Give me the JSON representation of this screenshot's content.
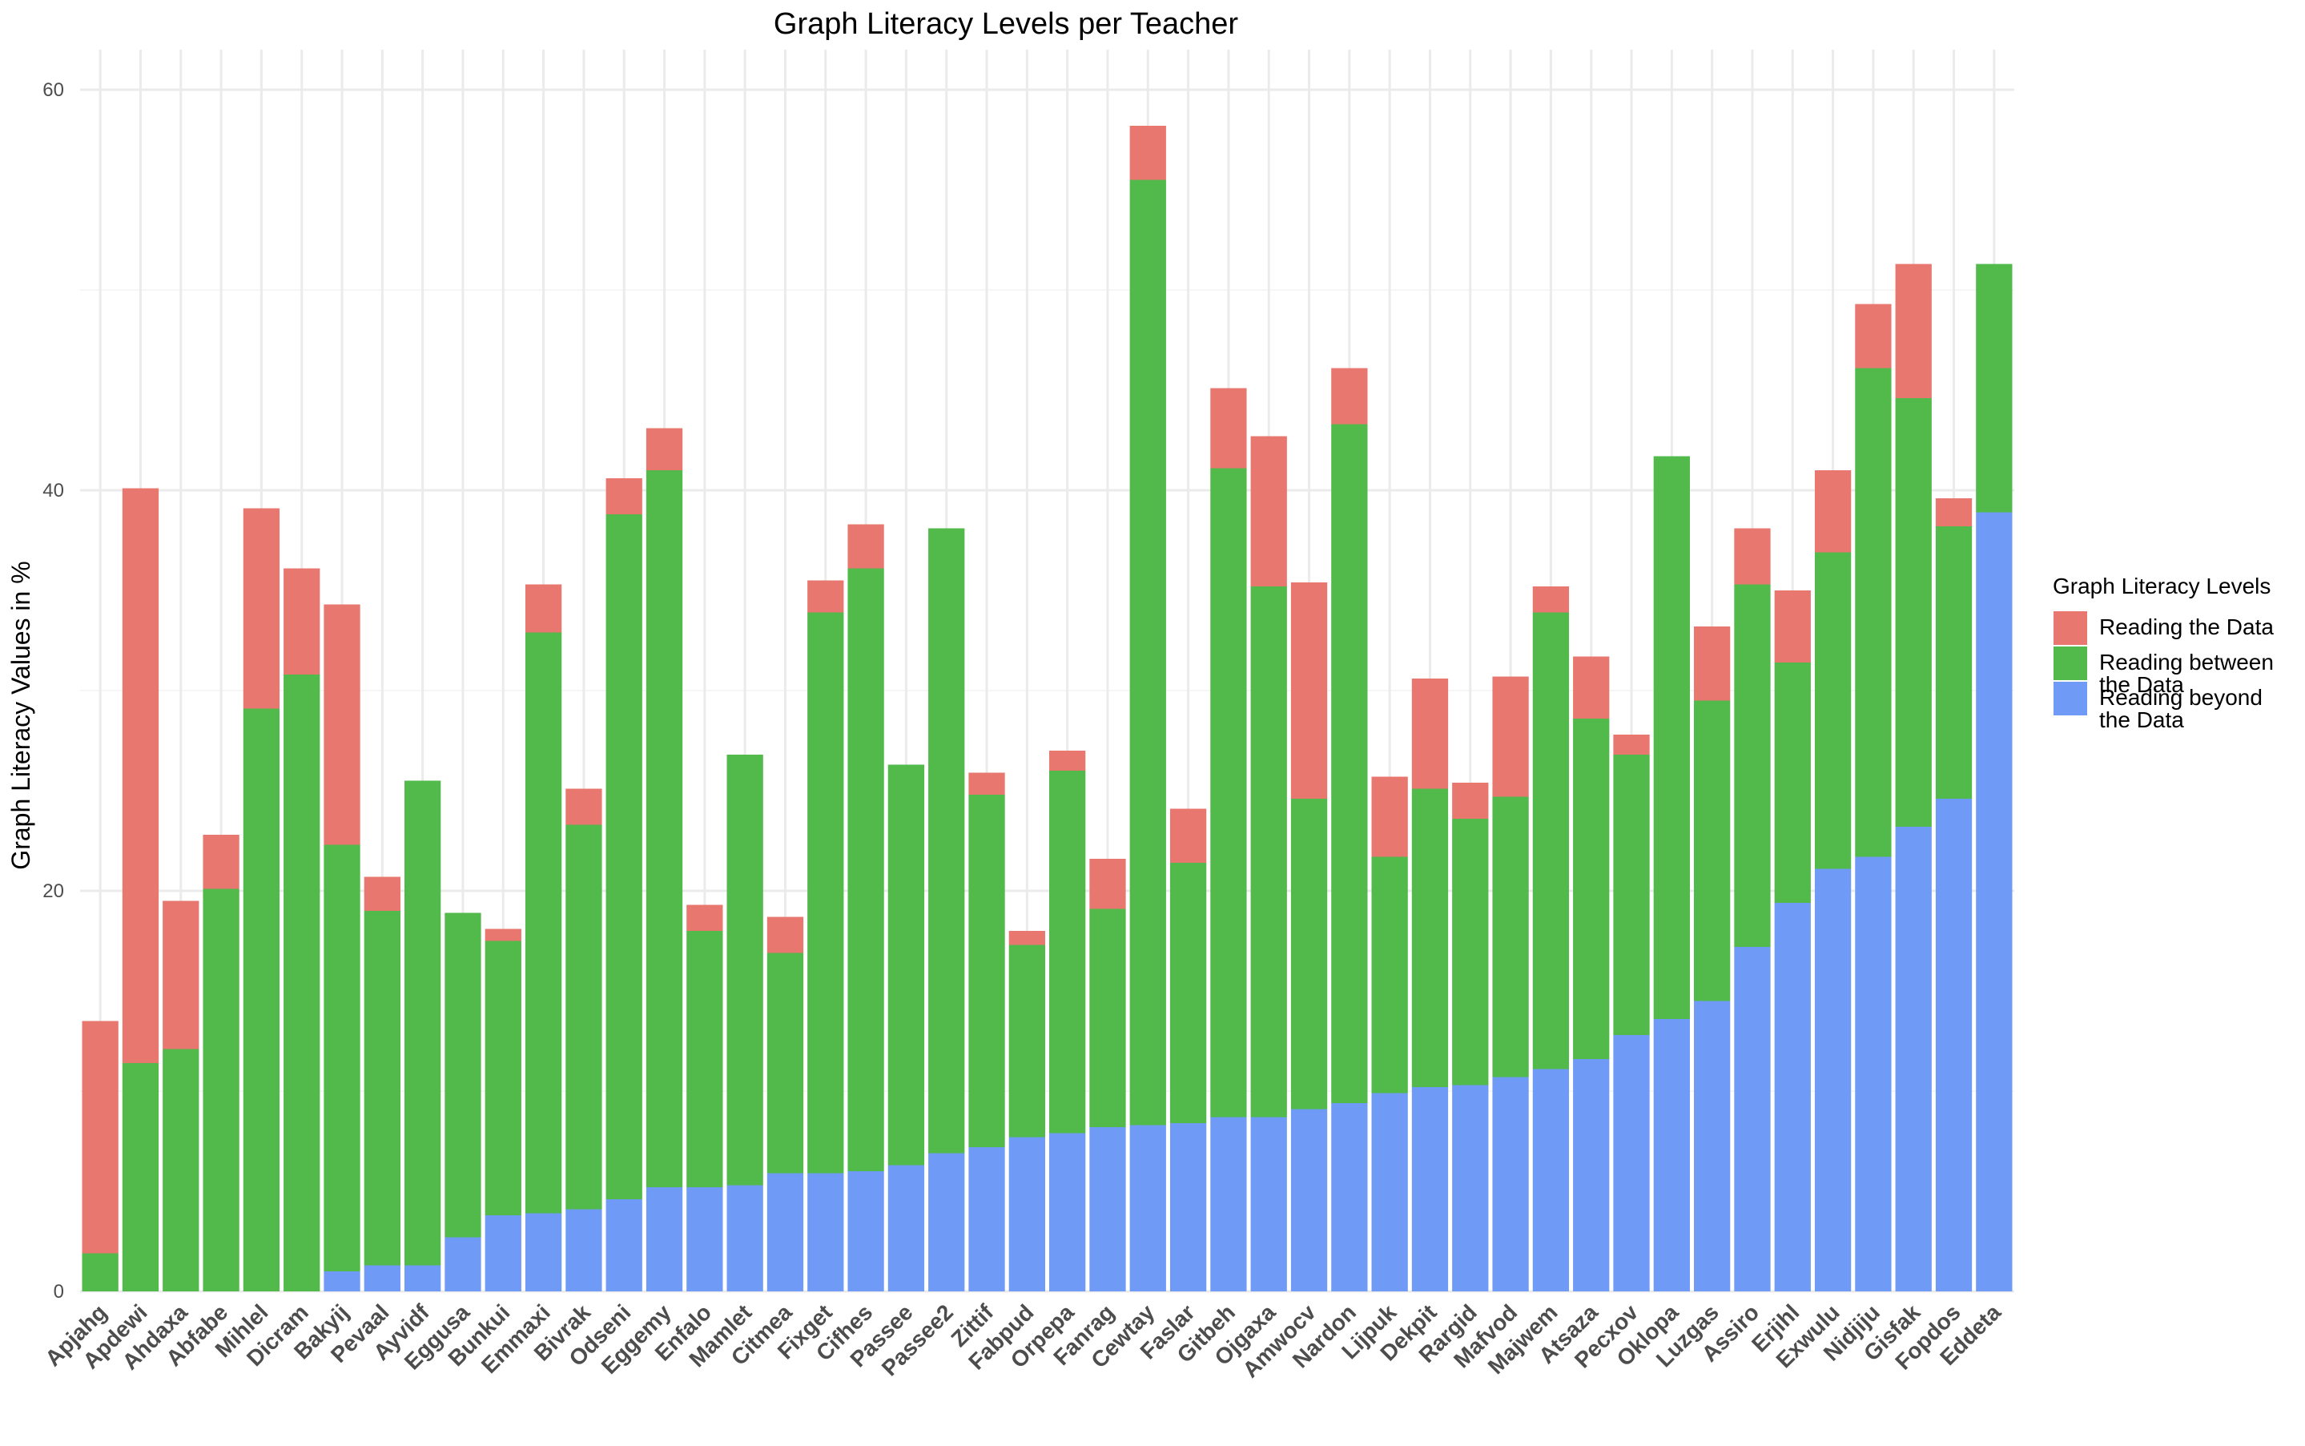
{
  "chart_data": {
    "type": "bar",
    "stacked": true,
    "title": "Graph Literacy Levels per Teacher",
    "xlabel": "",
    "ylabel": "Graph Literacy Values in %",
    "ylim": [
      0,
      62
    ],
    "yticks": [
      0,
      20,
      40,
      60
    ],
    "grid": true,
    "legend": {
      "title": "Graph Literacy Levels",
      "position": "right",
      "entries": [
        {
          "label_lines": [
            "Reading the Data"
          ],
          "color": "#E8786F"
        },
        {
          "label_lines": [
            "Reading between",
            "the Data"
          ],
          "color": "#52B94B"
        },
        {
          "label_lines": [
            "Reading beyond",
            "the Data"
          ],
          "color": "#6F9BF6"
        }
      ]
    },
    "categories": [
      "Apjahg",
      "Apdewi",
      "Ahdaxa",
      "Abfabe",
      "Mihlel",
      "Dicram",
      "Bakyij",
      "Pevaal",
      "Ayvidf",
      "Eggusa",
      "Bunkui",
      "Emmaxi",
      "Bivrak",
      "Odseni",
      "Eggemy",
      "Enfalo",
      "Mamlet",
      "Citmea",
      "Fixget",
      "Cifhes",
      "Passee",
      "Passee2",
      "Zittif",
      "Fabpud",
      "Orpepa",
      "Fanrag",
      "Cewtay",
      "Faslar",
      "Gitbeh",
      "Ojgaxa",
      "Amwocv",
      "Nardon",
      "Lijpuk",
      "Dekpit",
      "Rargid",
      "Mafvod",
      "Majwem",
      "Atsaza",
      "Pecxov",
      "Oklopa",
      "Luzgas",
      "Assiro",
      "Erjihl",
      "Exwulu",
      "Nidjiju",
      "Gisfak",
      "Fopdos",
      "Eddeta"
    ],
    "series": [
      {
        "name": "Reading beyond the Data",
        "color": "#6F9BF6",
        "values": [
          0,
          0,
          0,
          0,
          0,
          0,
          1.0,
          1.3,
          1.3,
          2.7,
          3.8,
          3.9,
          4.1,
          4.6,
          5.2,
          5.2,
          5.3,
          5.9,
          5.9,
          6.0,
          6.3,
          6.9,
          7.2,
          7.7,
          7.9,
          8.2,
          8.3,
          8.4,
          8.7,
          8.7,
          9.1,
          9.4,
          9.9,
          10.2,
          10.3,
          10.7,
          11.1,
          11.6,
          12.8,
          13.6,
          14.5,
          17.2,
          19.4,
          21.1,
          21.7,
          23.2,
          24.6,
          38.9
        ]
      },
      {
        "name": "Reading between the Data",
        "color": "#52B94B",
        "values": [
          1.9,
          11.4,
          12.1,
          20.1,
          29.1,
          30.8,
          21.3,
          17.7,
          24.2,
          16.2,
          13.7,
          29.0,
          19.2,
          34.2,
          35.8,
          12.8,
          21.5,
          11.0,
          28.0,
          30.1,
          20.0,
          31.2,
          17.6,
          9.6,
          18.1,
          10.9,
          47.2,
          13.0,
          32.4,
          26.5,
          15.5,
          33.9,
          11.8,
          14.9,
          13.3,
          14.0,
          22.8,
          17.0,
          14.0,
          28.1,
          15.0,
          18.1,
          12.0,
          15.8,
          24.4,
          21.4,
          13.6,
          12.4
        ]
      },
      {
        "name": "Reading the Data",
        "color": "#E8786F",
        "values": [
          11.6,
          28.7,
          7.4,
          2.7,
          10.0,
          5.3,
          12.0,
          1.7,
          0,
          0,
          0.6,
          2.4,
          1.8,
          1.8,
          2.1,
          1.3,
          0,
          1.8,
          1.6,
          2.2,
          0,
          0,
          1.1,
          0.7,
          1.0,
          2.5,
          2.7,
          2.7,
          4.0,
          7.5,
          10.8,
          2.8,
          4.0,
          5.5,
          1.8,
          6.0,
          1.3,
          3.1,
          1.0,
          0,
          3.7,
          2.8,
          3.6,
          4.1,
          3.2,
          6.7,
          1.4,
          0
        ]
      }
    ]
  }
}
